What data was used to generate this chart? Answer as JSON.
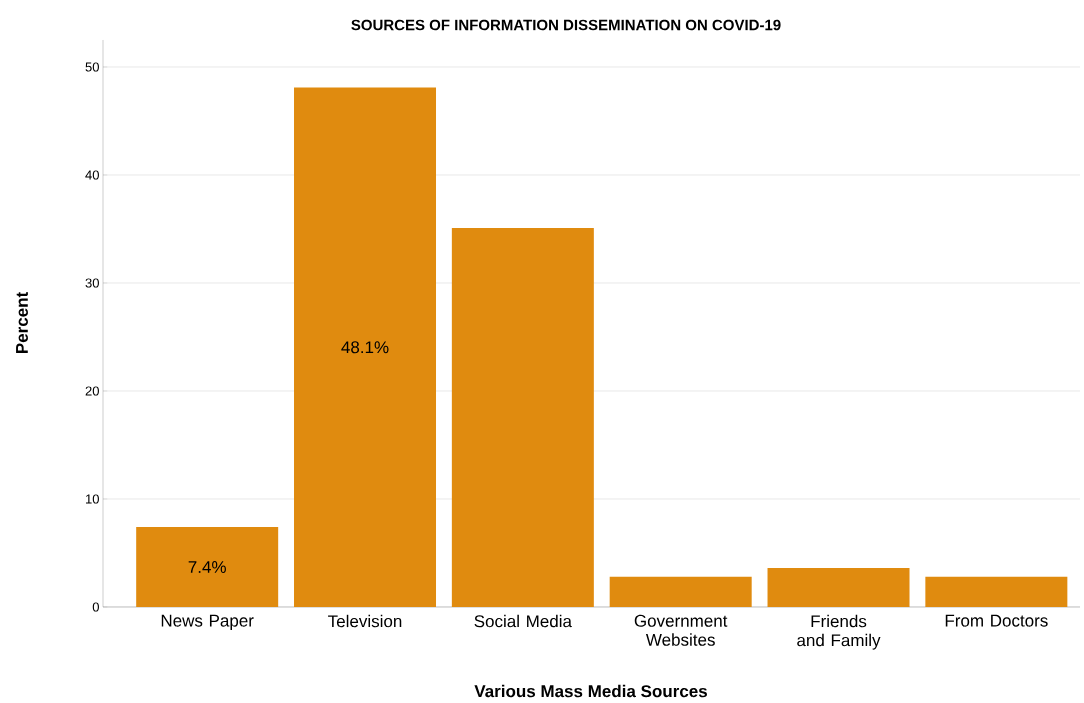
{
  "chart_data": {
    "type": "bar",
    "title": "SOURCES OF INFORMATION DISSEMINATION ON COVID-19",
    "xlabel": "Various Mass Media Sources",
    "ylabel": "Percent",
    "categories": [
      "News Paper",
      "Television",
      "Social Media",
      "Government Websites",
      "Friends and Family",
      "From Doctors"
    ],
    "values": [
      7.4,
      48.1,
      35.1,
      2.8,
      3.6,
      2.8
    ],
    "value_labels": [
      "7.4%",
      "48.1%",
      null,
      null,
      null,
      null
    ],
    "color": "#e08b0f",
    "ylim": [
      0,
      52.5
    ],
    "yticks": [
      0,
      10,
      20,
      30,
      40,
      50
    ],
    "grid": "y"
  }
}
